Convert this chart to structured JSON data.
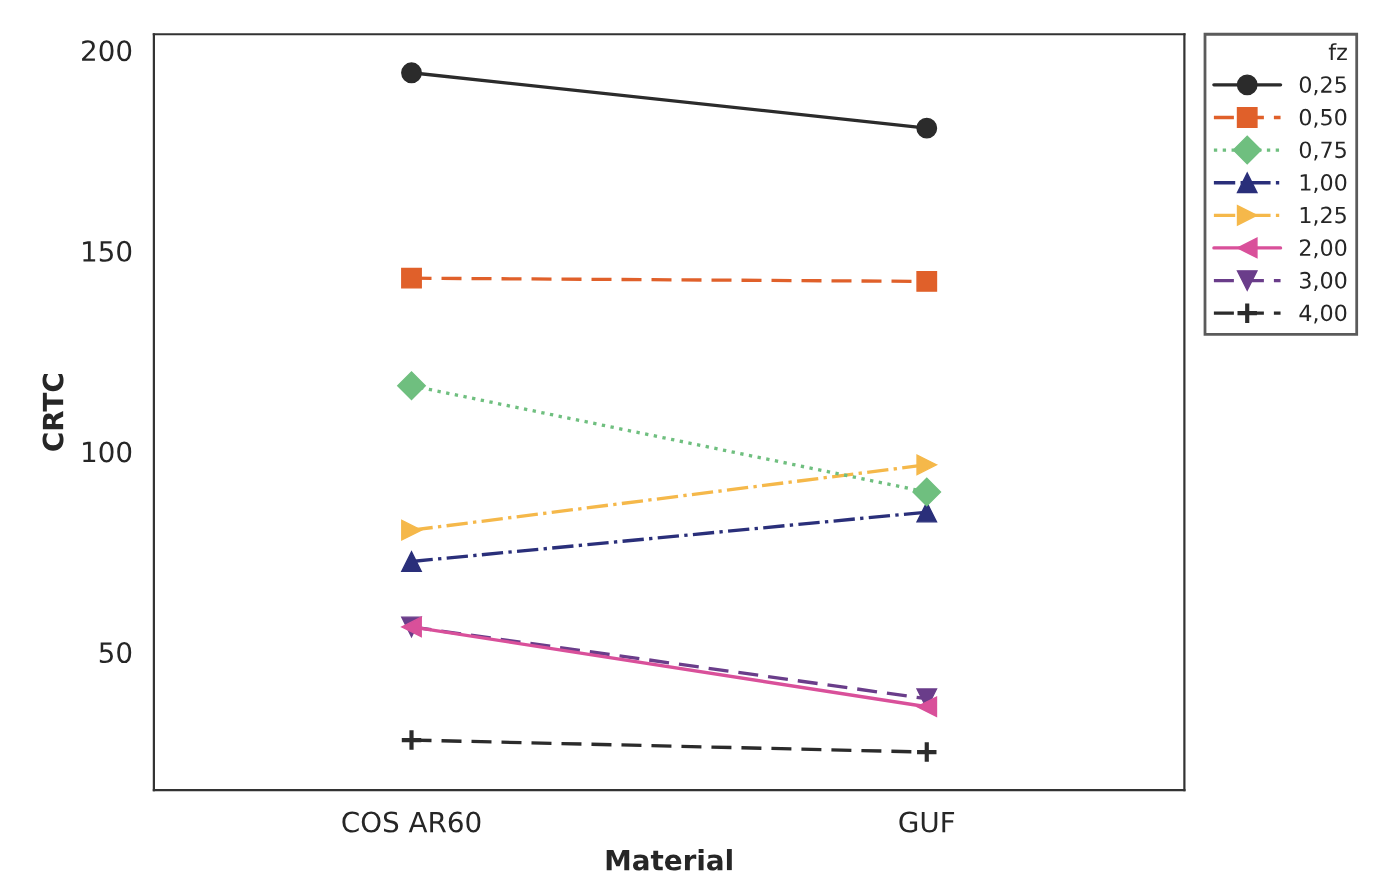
{
  "chart_data": {
    "type": "line",
    "xlabel": "Material",
    "ylabel": "CRTC",
    "legend_title": "fz",
    "legend": "top right",
    "grid": false,
    "categories": [
      "COS AR60",
      "GUF"
    ],
    "ylim": [
      15.6,
      204
    ],
    "yticks": [
      50,
      100,
      150,
      200
    ],
    "series": [
      {
        "name": "0,25",
        "color": "#2b2b2b",
        "values": [
          194.4,
          180.6
        ],
        "marker": "circle",
        "line_style": "solid"
      },
      {
        "name": "0,50",
        "color": "#e0602a",
        "values": [
          143.2,
          142.4
        ],
        "marker": "square",
        "line_style": "dashed"
      },
      {
        "name": "0,75",
        "color": "#6fbf7f",
        "values": [
          116.4,
          89.9
        ],
        "marker": "diamond",
        "line_style": "dotted"
      },
      {
        "name": "1,00",
        "color": "#2a2f7a",
        "values": [
          72.6,
          84.9
        ],
        "marker": "triangle",
        "line_style": "dashdot"
      },
      {
        "name": "1,25",
        "color": "#f5b84a",
        "values": [
          80.4,
          96.7
        ],
        "marker": "triangle_right",
        "line_style": "dashdot"
      },
      {
        "name": "2,00",
        "color": "#d9509a",
        "values": [
          56.3,
          36.4
        ],
        "marker": "triangle_left",
        "line_style": "solid"
      },
      {
        "name": "3,00",
        "color": "#6a3d8a",
        "values": [
          56.3,
          38.4
        ],
        "marker": "triangle_down",
        "line_style": "dashed"
      },
      {
        "name": "4,00",
        "color": "#2b2b2b",
        "values": [
          28.1,
          25.1
        ],
        "marker": "cross",
        "line_style": "dashed"
      }
    ]
  }
}
